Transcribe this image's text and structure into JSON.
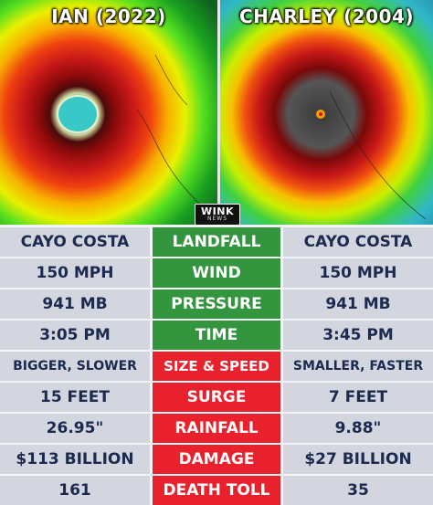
{
  "left_title": "IAN (2022)",
  "right_title": "CHARLEY (2004)",
  "logo": {
    "text": "WINK",
    "subtext": "NEWS"
  },
  "colors": {
    "green": "#33953d",
    "red": "#e8212c",
    "cell_bg": "#d3d6de",
    "text": "#1b2a4e"
  },
  "rows": [
    {
      "ian": "CAYO COSTA",
      "label": "LANDFALL",
      "charley": "CAYO COSTA",
      "color": "green"
    },
    {
      "ian": "150 MPH",
      "label": "WIND",
      "charley": "150 MPH",
      "color": "green"
    },
    {
      "ian": "941 MB",
      "label": "PRESSURE",
      "charley": "941 MB",
      "color": "green"
    },
    {
      "ian": "3:05 PM",
      "label": "TIME",
      "charley": "3:45 PM",
      "color": "green"
    },
    {
      "ian": "BIGGER, SLOWER",
      "label": "SIZE & SPEED",
      "charley": "SMALLER, FASTER",
      "color": "red"
    },
    {
      "ian": "15 FEET",
      "label": "SURGE",
      "charley": "7 FEET",
      "color": "red"
    },
    {
      "ian": "26.95\"",
      "label": "RAINFALL",
      "charley": "9.88\"",
      "color": "red"
    },
    {
      "ian": "$113 BILLION",
      "label": "DAMAGE",
      "charley": "$27 BILLION",
      "color": "red"
    },
    {
      "ian": "161",
      "label": "DEATH TOLL",
      "charley": "35",
      "color": "red"
    }
  ]
}
